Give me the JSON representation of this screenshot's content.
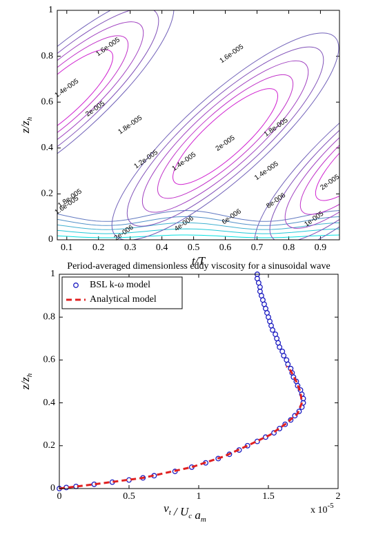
{
  "chart_data": [
    {
      "type": "contour",
      "xlabel": "t/T",
      "ylabel": {
        "text": "z/z",
        "sub": "h"
      },
      "xlim": [
        0.07,
        0.96
      ],
      "ylim": [
        0,
        1
      ],
      "xticks": [
        0.1,
        0.2,
        0.3,
        0.4,
        0.5,
        0.6,
        0.7,
        0.8,
        0.9
      ],
      "yticks": [
        0,
        0.2,
        0.4,
        0.6,
        0.8,
        1
      ],
      "levels": [
        {
          "value": 2e-06,
          "label": "2e-006"
        },
        {
          "value": 4e-06,
          "label": "4e-006"
        },
        {
          "value": 6e-06,
          "label": "6e-006"
        },
        {
          "value": 8e-06,
          "label": "8e-006"
        },
        {
          "value": 1e-05,
          "label": "1e-005"
        },
        {
          "value": 1.2e-05,
          "label": "1.2e-005"
        },
        {
          "value": 1.4e-05,
          "label": "1.4e-005"
        },
        {
          "value": 1.6e-05,
          "label": "1.6e-005"
        },
        {
          "value": 1.8e-05,
          "label": "1.8e-005"
        },
        {
          "value": 2e-05,
          "label": "2e-005"
        }
      ],
      "colors": [
        "#00e0e0",
        "#20c8d8",
        "#40b0d0",
        "#5090c8",
        "#6078c0",
        "#7060b8",
        "#8050b8",
        "#a040c0",
        "#c030c8",
        "#d020d0"
      ]
    },
    {
      "type": "scatter",
      "title": "Period-averaged dimensionless eddy viscosity for a sinusoidal wave",
      "xlabel": [
        {
          "text": "ν",
          "sub": "t"
        },
        {
          "text": " / U",
          "sub": "c"
        },
        {
          "text": " a",
          "sub": "m"
        }
      ],
      "ylabel": {
        "text": "z/z",
        "sub": "h"
      },
      "multiplier": {
        "text": "x 10",
        "sup": "-5"
      },
      "xlim": [
        0,
        2
      ],
      "ylim": [
        0,
        1
      ],
      "xticks": [
        0,
        0.5,
        1,
        1.5,
        2
      ],
      "yticks": [
        0,
        0.2,
        0.4,
        0.6,
        0.8,
        1
      ],
      "legend": "upper left",
      "series": [
        {
          "name": "BSL k-ω model",
          "color": "#1c1cc0",
          "marker": "circle",
          "x": [
            0.0,
            0.05,
            0.12,
            0.25,
            0.38,
            0.5,
            0.6,
            0.68,
            0.83,
            0.95,
            1.05,
            1.14,
            1.22,
            1.29,
            1.35,
            1.42,
            1.48,
            1.54,
            1.58,
            1.62,
            1.66,
            1.69,
            1.72,
            1.74,
            1.75,
            1.75,
            1.74,
            1.73,
            1.71,
            1.7,
            1.68,
            1.67,
            1.66,
            1.64,
            1.63,
            1.61,
            1.6,
            1.58,
            1.57,
            1.56,
            1.55,
            1.53,
            1.52,
            1.51,
            1.5,
            1.49,
            1.48,
            1.47,
            1.46,
            1.45,
            1.44,
            1.44,
            1.43,
            1.42,
            1.42
          ],
          "values": [
            0,
            0.005,
            0.01,
            0.02,
            0.03,
            0.04,
            0.05,
            0.06,
            0.08,
            0.1,
            0.12,
            0.14,
            0.16,
            0.18,
            0.2,
            0.22,
            0.24,
            0.26,
            0.28,
            0.3,
            0.32,
            0.34,
            0.36,
            0.38,
            0.4,
            0.42,
            0.44,
            0.46,
            0.48,
            0.5,
            0.52,
            0.54,
            0.56,
            0.58,
            0.6,
            0.62,
            0.64,
            0.66,
            0.68,
            0.7,
            0.72,
            0.74,
            0.76,
            0.78,
            0.8,
            0.82,
            0.84,
            0.86,
            0.88,
            0.9,
            0.92,
            0.94,
            0.96,
            0.98,
            1
          ]
        },
        {
          "name": "Analytical model",
          "color": "#e02020",
          "marker": "dashed-line",
          "x": [
            0,
            0.25,
            0.6,
            0.95,
            1.18,
            1.35,
            1.51,
            1.62,
            1.71,
            1.74,
            1.73,
            1.7,
            1.66,
            1.63
          ],
          "values": [
            0,
            0.02,
            0.05,
            0.1,
            0.15,
            0.2,
            0.25,
            0.3,
            0.35,
            0.4,
            0.45,
            0.5,
            0.55,
            0.57
          ]
        }
      ]
    }
  ]
}
